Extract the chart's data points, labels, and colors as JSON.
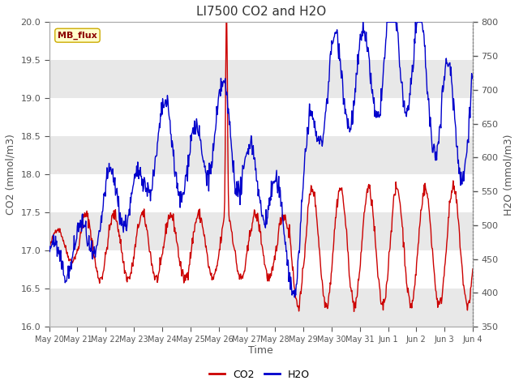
{
  "title": "LI7500 CO2 and H2O",
  "xlabel": "Time",
  "ylabel_left": "CO2 (mmol/m3)",
  "ylabel_right": "H2O (mmol/m3)",
  "co2_ylim": [
    16.0,
    20.0
  ],
  "h2o_ylim": [
    350,
    800
  ],
  "annotation_text": "MB_flux",
  "legend_labels": [
    "CO2",
    "H2O"
  ],
  "co2_color": "#cc0000",
  "h2o_color": "#0000cc",
  "bg_color": "#ffffff",
  "plot_bg_color": "#ffffff",
  "band_color": "#e8e8e8",
  "title_fontsize": 11,
  "axis_fontsize": 9,
  "tick_fontsize": 8,
  "line_width": 1.0,
  "x_tick_labels": [
    "May 20",
    "May 21",
    "May 22",
    "May 23",
    "May 24",
    "May 25",
    "May 26",
    "May 27",
    "May 28",
    "May 29",
    "May 30",
    "May 31",
    "Jun 1",
    "Jun 2",
    "Jun 3",
    "Jun 4"
  ],
  "n_points": 800,
  "seed": 42
}
